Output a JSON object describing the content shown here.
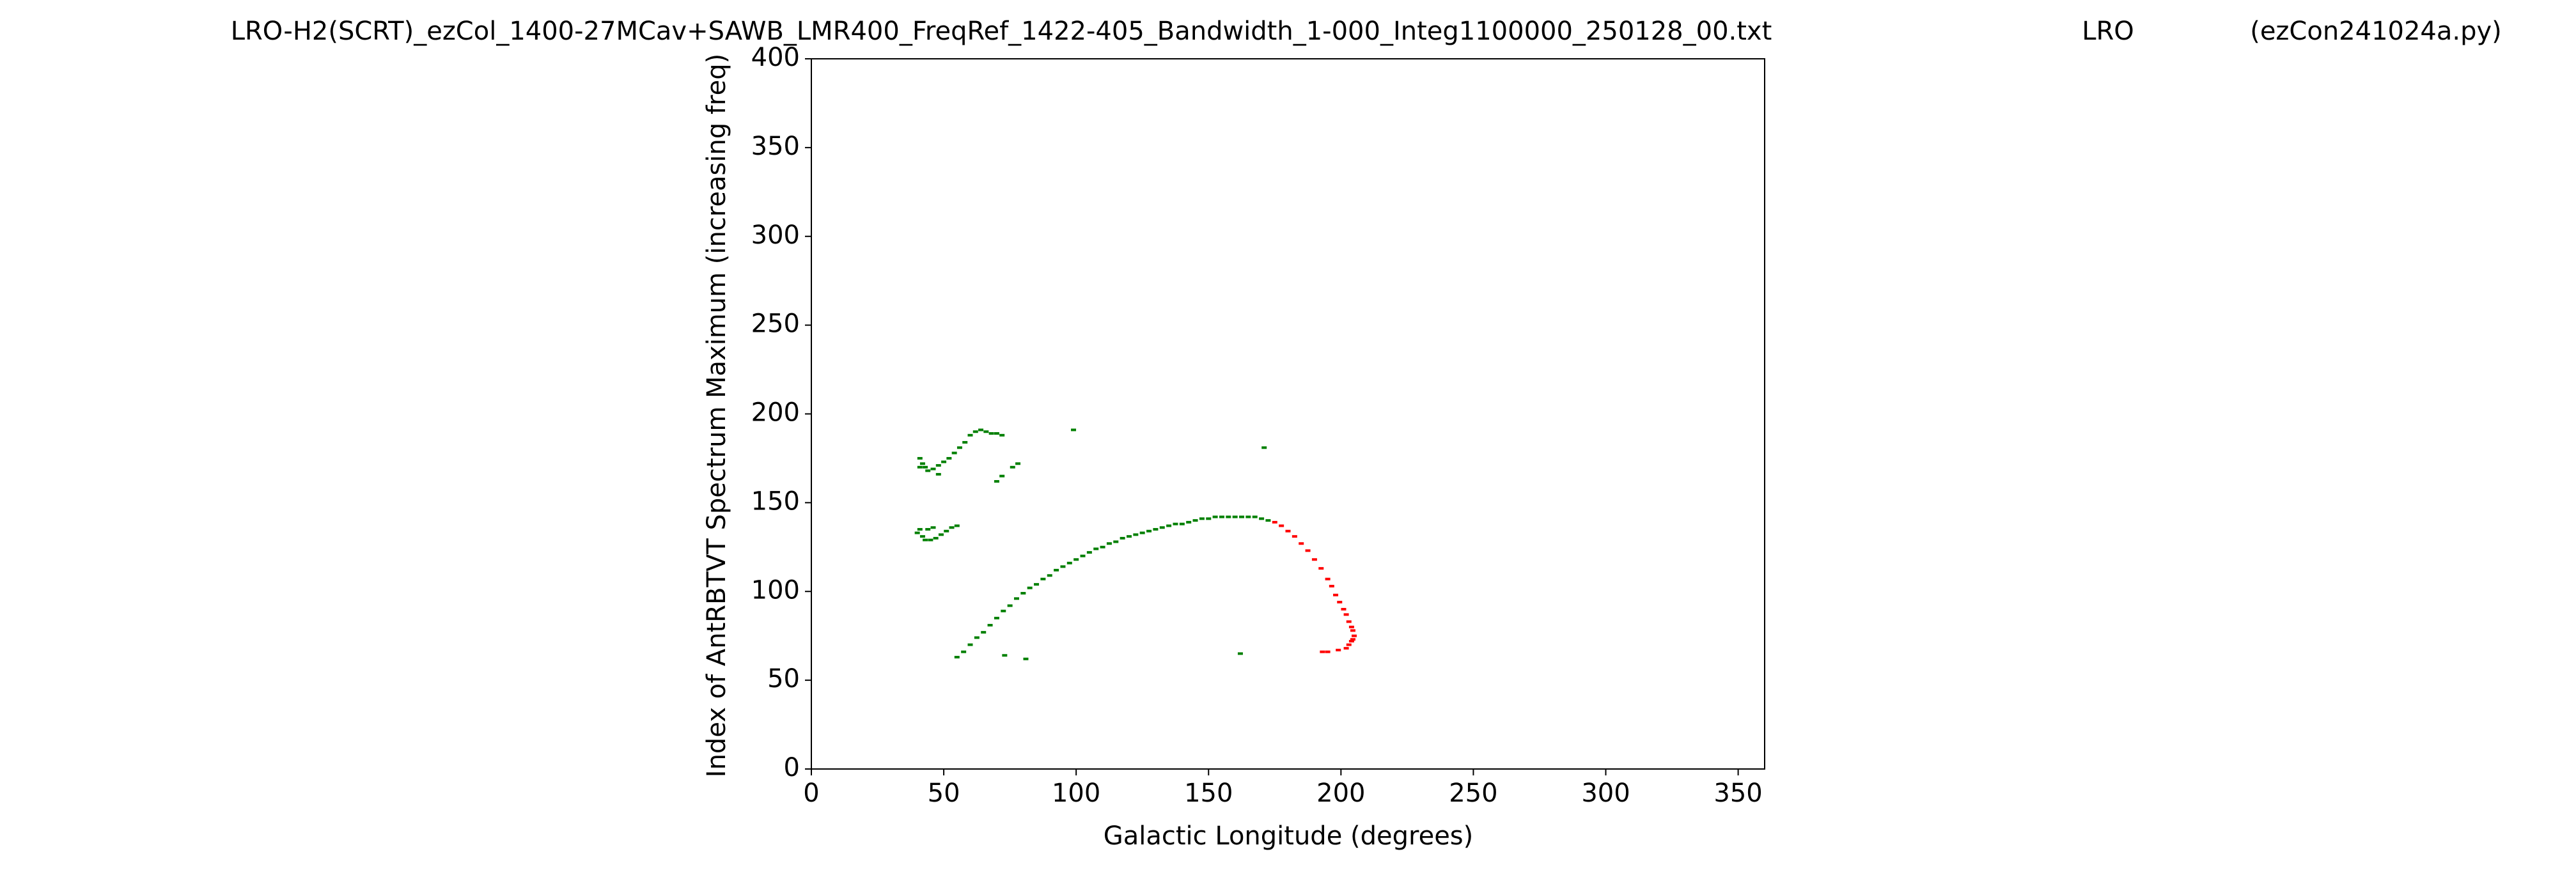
{
  "chart_data": {
    "type": "scatter",
    "title": "LRO-H2(SCRT)_ezCol_1400-27MCav+SAWB_LMR400_FreqRef_1422-405_Bandwidth_1-000_Integ1100000_250128_00.txt",
    "annotations": [
      "LRO",
      "(ezCon241024a.py)"
    ],
    "xlabel": "Galactic Longitude (degrees)",
    "ylabel": "Index of AntRBTVT Spectrum Maximum (increasing freq)",
    "xlim": [
      0,
      360
    ],
    "xticks": [
      0,
      50,
      100,
      150,
      200,
      250,
      300,
      350
    ],
    "ylim": [
      0,
      400
    ],
    "yticks": [
      0,
      50,
      100,
      150,
      200,
      250,
      300,
      350,
      400
    ],
    "grid": false,
    "series": [
      {
        "color": "#008000",
        "x": [
          55,
          57.5,
          60,
          62.5,
          65,
          67.5,
          70,
          72.5,
          75,
          77.5,
          80,
          82.5,
          85,
          87.5,
          90,
          92.5,
          95,
          97.5,
          100,
          102.5,
          105,
          107.5,
          110,
          112.5,
          115,
          117.5,
          120,
          122.5,
          125,
          127.5,
          130,
          132.5,
          135,
          137.5,
          140,
          142.5,
          145,
          147.5,
          150,
          152.5,
          155,
          157.5,
          160,
          162.5,
          165,
          167.5,
          170,
          172.5,
          40,
          41,
          42,
          43,
          45,
          47,
          49,
          51,
          53,
          55,
          44,
          46,
          41,
          42,
          43,
          44,
          46,
          48,
          50,
          52,
          54,
          56,
          58,
          60,
          62,
          64,
          66,
          68,
          70,
          72,
          41,
          48,
          70,
          72,
          76,
          78,
          99,
          171,
          162,
          73,
          81
        ],
        "values": [
          63,
          66,
          70,
          74,
          77,
          81,
          85,
          89,
          92,
          96,
          99,
          102,
          104,
          107,
          109,
          112,
          114,
          116,
          118,
          120,
          122,
          124,
          125,
          127,
          128,
          130,
          131,
          132,
          133,
          134,
          135,
          136,
          137,
          138,
          138,
          139,
          140,
          141,
          141,
          142,
          142,
          142,
          142,
          142,
          142,
          142,
          141,
          140,
          133,
          135,
          131,
          129,
          129,
          130,
          132,
          134,
          136,
          137,
          135,
          136,
          175,
          172,
          170,
          168,
          169,
          171,
          173,
          175,
          178,
          181,
          184,
          188,
          190,
          191,
          190,
          189,
          189,
          188,
          170,
          166,
          162,
          165,
          170,
          172,
          191,
          181,
          65,
          64,
          62
        ]
      },
      {
        "color": "#ff0000",
        "x": [
          175,
          177.5,
          180,
          182.5,
          185,
          187.5,
          190,
          192.5,
          195,
          196.5,
          198,
          199.5,
          201,
          202,
          203,
          204,
          204.5,
          205,
          204.5,
          204,
          203,
          202,
          193,
          195,
          199
        ],
        "values": [
          139,
          137,
          134,
          131,
          127,
          123,
          118,
          113,
          107,
          103,
          98,
          94,
          90,
          87,
          83,
          80,
          78,
          75,
          73,
          72,
          70,
          68,
          66,
          66,
          67
        ]
      }
    ]
  }
}
